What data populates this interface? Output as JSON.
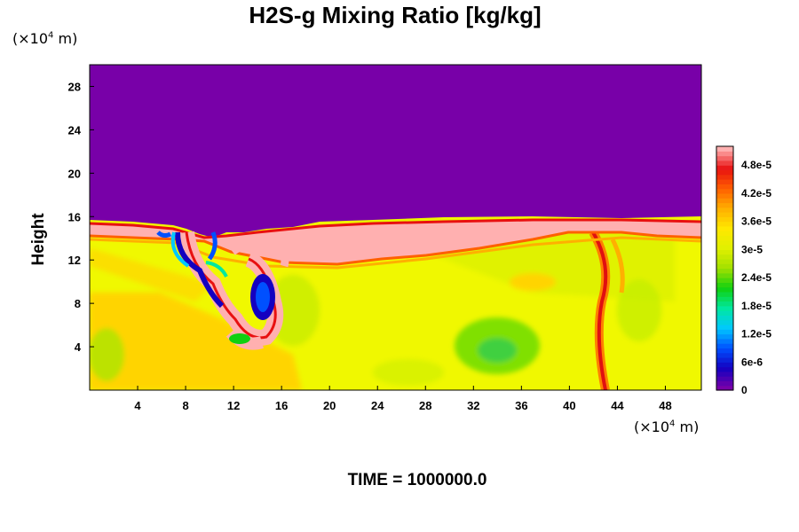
{
  "chart_data": {
    "type": "heatmap",
    "title": "H2S-g Mixing Ratio [kg/kg]",
    "ylabel": "Height",
    "xlabel": "",
    "x_unit": "(×10⁴ m)",
    "y_unit": "(×10⁴ m)",
    "x_ticks": [
      4,
      8,
      12,
      16,
      20,
      24,
      28,
      32,
      36,
      40,
      44,
      48
    ],
    "y_ticks": [
      4,
      8,
      12,
      16,
      20,
      24,
      28
    ],
    "xlim": [
      0,
      51
    ],
    "ylim": [
      0,
      30
    ],
    "colorbar": {
      "ticks": [
        "0",
        "6e-6",
        "1.2e-5",
        "1.8e-5",
        "2.4e-5",
        "3e-5",
        "3.6e-5",
        "4.2e-5",
        "4.8e-5"
      ],
      "range": [
        0,
        5.2e-05
      ],
      "palette": [
        "#7800a8",
        "#1400c0",
        "#0050ff",
        "#00c8ff",
        "#00e8a0",
        "#10d010",
        "#a0e000",
        "#e0f000",
        "#ffe800",
        "#ffb000",
        "#ff6000",
        "#e81010",
        "#ffb0b0"
      ]
    },
    "field_summary": {
      "upper_layer_value": 0,
      "interface_height": 15.5,
      "lower_layer_typical": 3.6e-05,
      "interface_band_value": 5.2e-05
    },
    "time_label": "TIME = 1000000.0"
  }
}
